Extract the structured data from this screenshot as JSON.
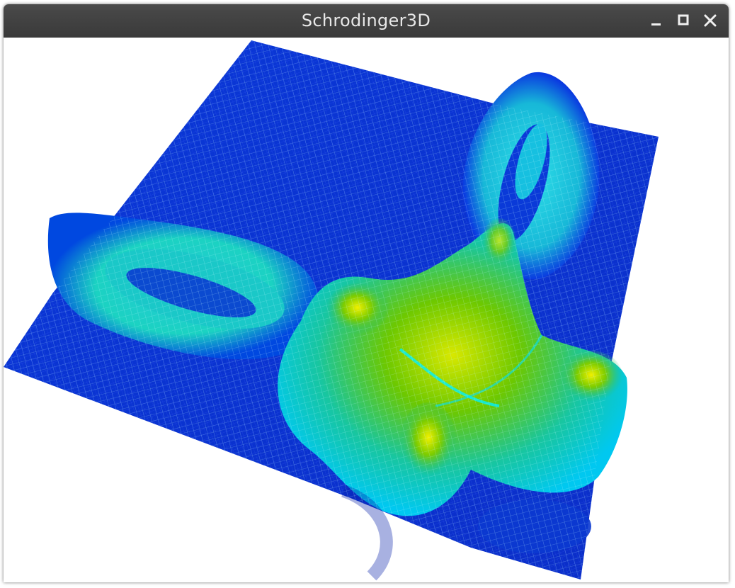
{
  "window": {
    "title": "Schrodinger3D",
    "controls": {
      "minimize_icon": "minimize-icon",
      "maximize_icon": "maximize-icon",
      "close_icon": "close-icon"
    }
  },
  "surface": {
    "colormap": [
      "#0a1fb0",
      "#0a6bff",
      "#00e5ff",
      "#14c08a",
      "#3fbf10",
      "#78d000",
      "#e8e800"
    ],
    "mesh_color": "#d8ffff"
  }
}
